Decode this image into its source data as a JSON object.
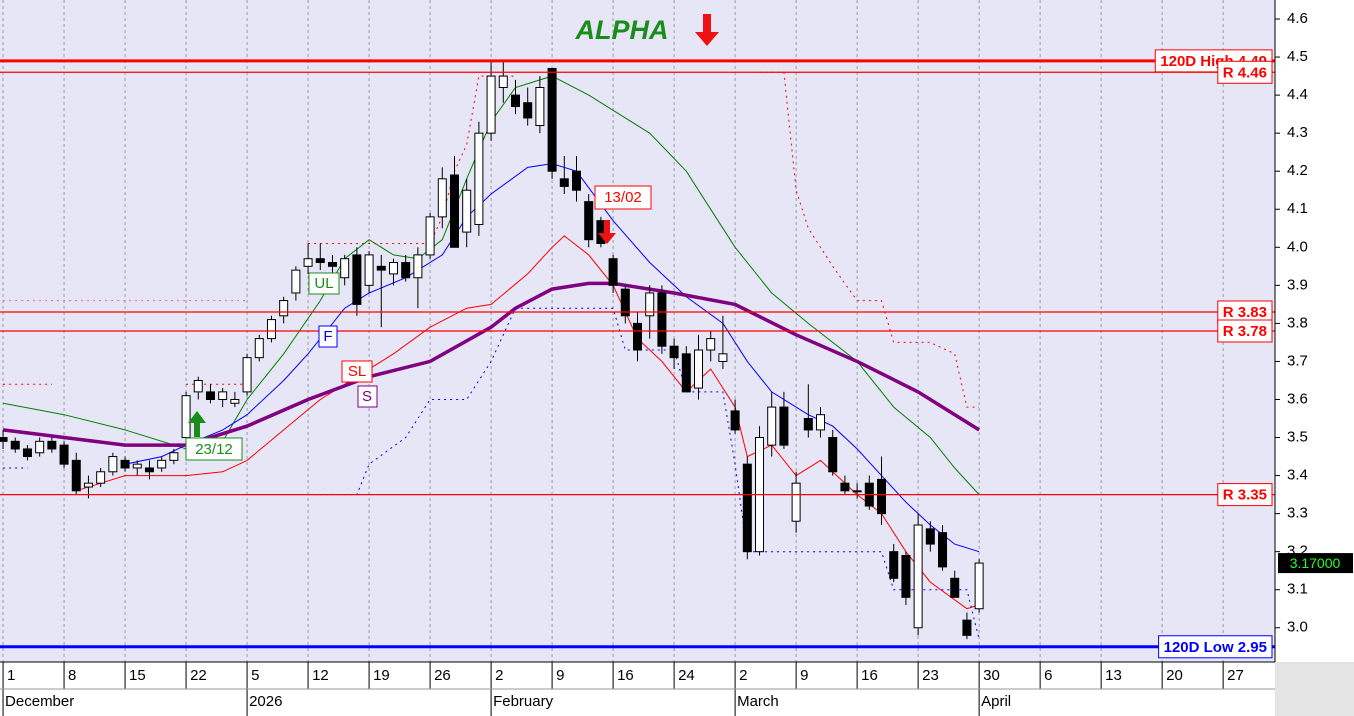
{
  "chart_data": {
    "type": "candlestick",
    "title": "ALPHA",
    "xlim": [
      -0.25,
      104.25
    ],
    "ylim": [
      2.91,
      4.65
    ],
    "yticks": [
      {
        "value": 3,
        "label": "3.0"
      },
      3.1,
      3.2,
      3.3,
      3.4,
      3.5,
      3.6,
      3.7,
      3.8,
      3.9,
      {
        "value": 4,
        "label": "4.0"
      },
      4.1,
      4.2,
      4.3,
      4.4,
      4.5,
      4.6
    ],
    "xticks": [
      {
        "value": 0,
        "label": "1"
      },
      {
        "value": 5,
        "label": "8"
      },
      {
        "value": 10,
        "label": "15"
      },
      {
        "value": 15,
        "label": "22"
      },
      {
        "value": 20,
        "label": "5"
      },
      {
        "value": 25,
        "label": "12"
      },
      {
        "value": 30,
        "label": "19"
      },
      {
        "value": 35,
        "label": "26"
      },
      {
        "value": 40,
        "label": "2"
      },
      {
        "value": 45,
        "label": "9"
      },
      {
        "value": 50,
        "label": "16"
      },
      {
        "value": 55,
        "label": "24"
      },
      {
        "value": 60,
        "label": "2"
      },
      {
        "value": 65,
        "label": "9"
      },
      {
        "value": 70,
        "label": "16"
      },
      {
        "value": 75,
        "label": "23"
      },
      {
        "value": 80,
        "label": "30"
      },
      {
        "value": 85,
        "label": "6"
      },
      {
        "value": 90,
        "label": "13"
      },
      {
        "value": 95,
        "label": "20"
      },
      {
        "value": 100,
        "label": "27"
      }
    ],
    "months": [
      {
        "value": 0,
        "label": "December"
      },
      {
        "value": 20,
        "label": "2026"
      },
      {
        "value": 40,
        "label": "February"
      },
      {
        "value": 60,
        "label": "March"
      },
      {
        "value": 80,
        "label": "April"
      }
    ],
    "grid": true,
    "candles": {
      "open": [
        3.5,
        3.49,
        3.47,
        3.46,
        3.49,
        3.48,
        3.44,
        3.37,
        3.38,
        3.41,
        3.44,
        3.42,
        3.42,
        3.42,
        3.44,
        3.5,
        3.62,
        3.62,
        3.6,
        3.59,
        3.62,
        3.71,
        3.76,
        3.82,
        3.88,
        3.95,
        3.97,
        3.96,
        3.92,
        3.98,
        3.9,
        3.95,
        3.93,
        3.96,
        3.92,
        3.98,
        4.08,
        4.19,
        4.04,
        4.06,
        4.3,
        4.42,
        4.4,
        4.38,
        4.32,
        4.47,
        4.18,
        4.2,
        4.12,
        4.07,
        3.97,
        3.89,
        3.8,
        3.82,
        3.88,
        3.74,
        3.72,
        3.63,
        3.73,
        3.7,
        3.57,
        3.43,
        3.2,
        3.48,
        3.58,
        3.28,
        3.55,
        3.52,
        3.5,
        3.38,
        3.36,
        3.38,
        3.39,
        3.2,
        3.19,
        3.0,
        3.26,
        3.25,
        3.13,
        3.02,
        3.05
      ],
      "high": [
        3.52,
        3.5,
        3.48,
        3.5,
        3.5,
        3.49,
        3.46,
        3.4,
        3.42,
        3.46,
        3.45,
        3.44,
        3.44,
        3.45,
        3.47,
        3.62,
        3.66,
        3.64,
        3.63,
        3.62,
        3.72,
        3.77,
        3.82,
        3.87,
        3.95,
        4.01,
        4.01,
        3.98,
        3.98,
        4.0,
        3.99,
        3.98,
        3.97,
        3.98,
        4.0,
        4.09,
        4.21,
        4.24,
        4.18,
        4.33,
        4.49,
        4.49,
        4.44,
        4.42,
        4.45,
        4.47,
        4.24,
        4.24,
        4.14,
        4.08,
        3.98,
        3.9,
        3.83,
        3.9,
        3.9,
        3.76,
        3.74,
        3.77,
        3.78,
        3.82,
        3.6,
        3.45,
        3.53,
        3.62,
        3.62,
        3.41,
        3.64,
        3.58,
        3.52,
        3.4,
        3.38,
        3.4,
        3.45,
        3.22,
        3.2,
        3.3,
        3.28,
        3.27,
        3.15,
        3.04,
        3.18
      ],
      "low": [
        3.47,
        3.46,
        3.44,
        3.45,
        3.46,
        3.42,
        3.35,
        3.34,
        3.37,
        3.4,
        3.41,
        3.4,
        3.39,
        3.41,
        3.43,
        3.49,
        3.6,
        3.59,
        3.58,
        3.58,
        3.61,
        3.7,
        3.75,
        3.8,
        3.86,
        3.93,
        3.94,
        3.93,
        3.9,
        3.82,
        3.88,
        3.79,
        3.9,
        3.91,
        3.84,
        3.97,
        4.05,
        4.0,
        4.0,
        4.03,
        4.28,
        4.38,
        4.35,
        4.32,
        4.3,
        4.18,
        4.14,
        4.12,
        4.0,
        4.0,
        3.88,
        3.8,
        3.7,
        3.76,
        3.72,
        3.68,
        3.62,
        3.6,
        3.7,
        3.68,
        3.51,
        3.18,
        3.19,
        3.45,
        3.47,
        3.25,
        3.5,
        3.5,
        3.4,
        3.35,
        3.34,
        3.31,
        3.27,
        3.12,
        3.06,
        2.98,
        3.2,
        3.15,
        3.08,
        2.97,
        3.04
      ],
      "close": [
        3.49,
        3.47,
        3.45,
        3.49,
        3.47,
        3.43,
        3.36,
        3.38,
        3.41,
        3.45,
        3.42,
        3.43,
        3.41,
        3.44,
        3.46,
        3.61,
        3.65,
        3.6,
        3.62,
        3.6,
        3.71,
        3.76,
        3.81,
        3.86,
        3.94,
        3.97,
        3.96,
        3.95,
        3.97,
        3.85,
        3.98,
        3.94,
        3.96,
        3.92,
        3.98,
        4.08,
        4.18,
        4.0,
        4.15,
        4.3,
        4.45,
        4.45,
        4.37,
        4.34,
        4.42,
        4.2,
        4.16,
        4.15,
        4.02,
        4.01,
        3.9,
        3.82,
        3.73,
        3.88,
        3.74,
        3.71,
        3.62,
        3.73,
        3.76,
        3.72,
        3.52,
        3.2,
        3.5,
        3.58,
        3.48,
        3.38,
        3.52,
        3.56,
        3.41,
        3.36,
        3.36,
        3.32,
        3.3,
        3.13,
        3.08,
        3.27,
        3.22,
        3.16,
        3.08,
        2.98,
        3.17
      ]
    },
    "series": [
      {
        "color": "#008000",
        "width": 1,
        "dash": false,
        "x": [
          0,
          5,
          10,
          15,
          18,
          20,
          23,
          26,
          28,
          30,
          32,
          34,
          36,
          38,
          40,
          42,
          45,
          48,
          50,
          53,
          56,
          58,
          60,
          63,
          66,
          70,
          73,
          76,
          78,
          80
        ],
        "values": [
          3.59,
          3.56,
          3.52,
          3.47,
          3.49,
          3.6,
          3.72,
          3.86,
          3.97,
          4.02,
          3.98,
          3.97,
          4.02,
          4.18,
          4.33,
          4.42,
          4.45,
          4.4,
          4.36,
          4.3,
          4.2,
          4.1,
          4.0,
          3.88,
          3.8,
          3.7,
          3.58,
          3.5,
          3.42,
          3.35
        ]
      },
      {
        "color": "#0000ff",
        "width": 1,
        "dash": false,
        "x": [
          10,
          13,
          15,
          18,
          20,
          23,
          25,
          28,
          30,
          33,
          36,
          38,
          40,
          43,
          45,
          47,
          50,
          53,
          56,
          59,
          61,
          63,
          66,
          68,
          70,
          72,
          74,
          76,
          78,
          80
        ],
        "values": [
          3.43,
          3.45,
          3.48,
          3.52,
          3.56,
          3.65,
          3.72,
          3.84,
          3.88,
          3.92,
          3.98,
          4.08,
          4.14,
          4.21,
          4.22,
          4.2,
          4.07,
          3.96,
          3.87,
          3.8,
          3.7,
          3.62,
          3.56,
          3.53,
          3.47,
          3.4,
          3.33,
          3.27,
          3.22,
          3.2
        ]
      },
      {
        "color": "#ff0000",
        "width": 1,
        "dash": false,
        "x": [
          6,
          8,
          10,
          13,
          15,
          18,
          20,
          23,
          26,
          29,
          32,
          35,
          38,
          40,
          43,
          45,
          46,
          48,
          50,
          52,
          54,
          56,
          58,
          60,
          61,
          63,
          65,
          67,
          70,
          72,
          74,
          76,
          79,
          80
        ],
        "values": [
          3.36,
          3.38,
          3.4,
          3.4,
          3.4,
          3.41,
          3.44,
          3.52,
          3.6,
          3.66,
          3.72,
          3.79,
          3.84,
          3.85,
          3.93,
          4.0,
          4.03,
          3.98,
          3.9,
          3.76,
          3.7,
          3.62,
          3.68,
          3.58,
          3.45,
          3.48,
          3.4,
          3.44,
          3.35,
          3.3,
          3.2,
          3.12,
          3.05,
          3.06
        ]
      },
      {
        "color": "#800080",
        "width": 3.5,
        "dash": false,
        "x": [
          0,
          5,
          10,
          15,
          20,
          25,
          30,
          35,
          40,
          42,
          45,
          48,
          50,
          55,
          60,
          65,
          70,
          75,
          80
        ],
        "values": [
          3.52,
          3.5,
          3.48,
          3.48,
          3.53,
          3.6,
          3.66,
          3.7,
          3.79,
          3.84,
          3.89,
          3.905,
          3.905,
          3.88,
          3.85,
          3.77,
          3.7,
          3.62,
          3.52
        ]
      },
      {
        "color": "#ff0000",
        "width": 1,
        "dash": true,
        "x": [
          0,
          4,
          10,
          15,
          20,
          22,
          25,
          35,
          36,
          37,
          38,
          39,
          42,
          50,
          62,
          64,
          65,
          66,
          68,
          70,
          72,
          73,
          76,
          78,
          79,
          80
        ],
        "values": [
          3.64,
          3.64,
          null,
          3.64,
          3.64,
          null,
          4.01,
          4.01,
          4.08,
          4.2,
          4.27,
          4.45,
          4.45,
          null,
          4.46,
          4.46,
          4.15,
          4.05,
          3.95,
          3.86,
          3.86,
          3.75,
          3.75,
          3.72,
          3.58,
          3.58
        ]
      },
      {
        "color": "#0000ff",
        "width": 1,
        "dash": true,
        "x": [
          0,
          2,
          10,
          25,
          29,
          30,
          33,
          35,
          38,
          40,
          42,
          50,
          51,
          55,
          56,
          59,
          60,
          61,
          72,
          73,
          79,
          80
        ],
        "values": [
          3.42,
          3.42,
          null,
          3.35,
          3.35,
          3.43,
          3.5,
          3.6,
          3.6,
          3.7,
          3.84,
          3.84,
          3.73,
          3.73,
          3.62,
          3.62,
          3.43,
          3.2,
          3.2,
          3.1,
          3.1,
          2.97
        ]
      },
      {
        "color": "#ff6060",
        "width": 1,
        "dash": true,
        "x": [
          0,
          20
        ],
        "values": [
          3.86,
          3.86
        ]
      }
    ],
    "levels": [
      {
        "value": 4.49,
        "label": "120D High 4.49",
        "color": "#ff0000",
        "thick": true
      },
      {
        "value": 4.46,
        "label": "R 4.46",
        "color": "#ff0000",
        "thick": false
      },
      {
        "value": 3.83,
        "label": "R 3.83",
        "color": "#ff0000",
        "thick": false
      },
      {
        "value": 3.78,
        "label": "R 3.78",
        "color": "#ff0000",
        "thick": false
      },
      {
        "value": 3.35,
        "label": "R 3.35",
        "color": "#ff0000",
        "thick": false
      },
      {
        "value": 2.95,
        "label": "120D Low 2.95",
        "color": "#0000ff",
        "thick": true
      }
    ],
    "last_price": {
      "value": 3.17,
      "label": "3.17000"
    },
    "annotations": {
      "sell_date": "13/02",
      "buy_date": "23/12",
      "tags": [
        "UL",
        "F",
        "SL",
        "S"
      ]
    }
  }
}
